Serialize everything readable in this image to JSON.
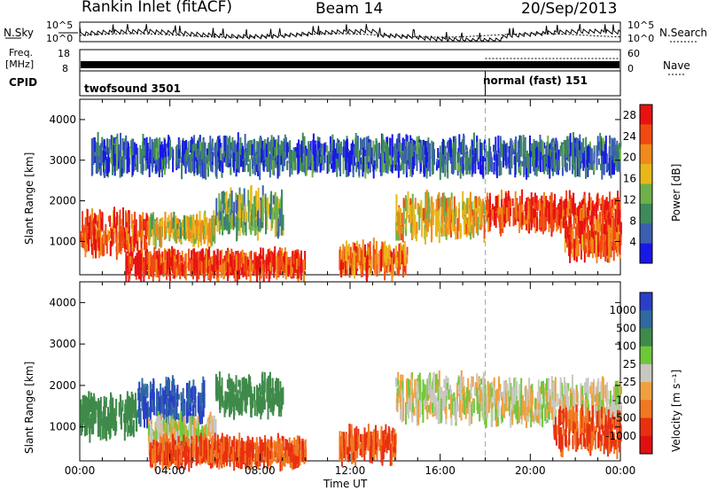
{
  "header": {
    "station": "Rankin Inlet (fitACF)",
    "beam": "Beam 14",
    "date": "20/Sep/2013"
  },
  "left_labels": {
    "nsky": "N.Sky",
    "freq_line1": "Freq.",
    "freq_line2": "[MHz]",
    "cpid": "CPID"
  },
  "right_labels": {
    "nsearch": "N.Search",
    "nave": "Nave"
  },
  "small_ticks": {
    "noise_top": "10^5",
    "noise_bottom": "10^0",
    "freq_top": "18",
    "freq_bottom": "8",
    "nave_top": "60",
    "nave_bottom": "0"
  },
  "cpid_segments": [
    {
      "label": "twofsound 3501",
      "start": "00:00",
      "end": "18:00"
    },
    {
      "label": "normal (fast) 151",
      "start": "18:00",
      "end": "24:00"
    }
  ],
  "colors": {
    "power_scale": [
      "#1818e8",
      "#3a5fb0",
      "#3f8a5a",
      "#6fb04a",
      "#e8b81a",
      "#f08a1a",
      "#f04a12",
      "#e81212"
    ],
    "velocity_scale": [
      "#2a3fc8",
      "#2f6aa0",
      "#3f8a4a",
      "#6ec83a",
      "#c8c8c0",
      "#f0a040",
      "#f07820",
      "#e83010",
      "#e01010"
    ]
  },
  "chart_data": [
    {
      "type": "heatmap",
      "panel": "power",
      "x_start": "00:00",
      "x_end": "24:00",
      "xlabel": "Time UT",
      "xticks": [
        "00:00",
        "04:00",
        "08:00",
        "12:00",
        "16:00",
        "20:00",
        "00:00"
      ],
      "ylabel": "Slant Range [km]",
      "ylim": [
        180,
        4500
      ],
      "yticks": [
        1000,
        2000,
        3000,
        4000
      ],
      "colorbar": {
        "label": "Power [dB]",
        "ticks": [
          4,
          8,
          12,
          16,
          20,
          24,
          28
        ],
        "range": [
          0,
          30
        ]
      },
      "echo_bands": [
        {
          "t_start": 0.0,
          "t_end": 3.0,
          "range_lo": 800,
          "range_hi": 1600,
          "value": 24
        },
        {
          "t_start": 3.0,
          "t_end": 6.0,
          "range_lo": 1100,
          "range_hi": 1500,
          "value": 16
        },
        {
          "t_start": 2.0,
          "t_end": 10.0,
          "range_lo": 250,
          "range_hi": 600,
          "value": 26
        },
        {
          "t_start": 6.0,
          "t_end": 9.0,
          "range_lo": 1300,
          "range_hi": 2100,
          "value": 12
        },
        {
          "t_start": 11.5,
          "t_end": 14.5,
          "range_lo": 300,
          "range_hi": 800,
          "value": 22
        },
        {
          "t_start": 14.0,
          "t_end": 18.0,
          "range_lo": 1200,
          "range_hi": 2000,
          "value": 18
        },
        {
          "t_start": 18.0,
          "t_end": 24.0,
          "range_lo": 1400,
          "range_hi": 2000,
          "value": 26
        },
        {
          "t_start": 21.5,
          "t_end": 24.0,
          "range_lo": 700,
          "range_hi": 1300,
          "value": 24
        },
        {
          "t_start": 0.5,
          "t_end": 24.0,
          "range_lo": 2800,
          "range_hi": 3400,
          "value": 6
        }
      ]
    },
    {
      "type": "heatmap",
      "panel": "velocity",
      "x_start": "00:00",
      "x_end": "24:00",
      "xlabel": "Time UT",
      "xticks": [
        "00:00",
        "04:00",
        "08:00",
        "12:00",
        "16:00",
        "20:00",
        "00:00"
      ],
      "ylabel": "Slant Range [km]",
      "ylim": [
        180,
        4500
      ],
      "yticks": [
        1000,
        2000,
        3000,
        4000
      ],
      "colorbar": {
        "label": "Velocity [m s⁻¹]",
        "ticks": [
          1000,
          500,
          100,
          25,
          -25,
          -100,
          -500,
          -1000
        ]
      },
      "echo_bands": [
        {
          "t_start": 0.0,
          "t_end": 2.5,
          "range_lo": 900,
          "range_hi": 1600,
          "value": 100
        },
        {
          "t_start": 2.5,
          "t_end": 5.5,
          "range_lo": 1200,
          "range_hi": 2000,
          "value": 800
        },
        {
          "t_start": 3.0,
          "t_end": 6.0,
          "range_lo": 600,
          "range_hi": 1100,
          "value": 0
        },
        {
          "t_start": 3.0,
          "t_end": 10.0,
          "range_lo": 200,
          "range_hi": 600,
          "value": -300
        },
        {
          "t_start": 6.0,
          "t_end": 9.0,
          "range_lo": 1400,
          "range_hi": 2100,
          "value": 200
        },
        {
          "t_start": 11.5,
          "t_end": 14.0,
          "range_lo": 300,
          "range_hi": 800,
          "value": -300
        },
        {
          "t_start": 14.0,
          "t_end": 18.0,
          "range_lo": 1300,
          "range_hi": 2100,
          "value": 0
        },
        {
          "t_start": 18.0,
          "t_end": 24.0,
          "range_lo": 1200,
          "range_hi": 2000,
          "value": 0
        },
        {
          "t_start": 21.0,
          "t_end": 24.0,
          "range_lo": 500,
          "range_hi": 1300,
          "value": -300
        }
      ]
    }
  ]
}
